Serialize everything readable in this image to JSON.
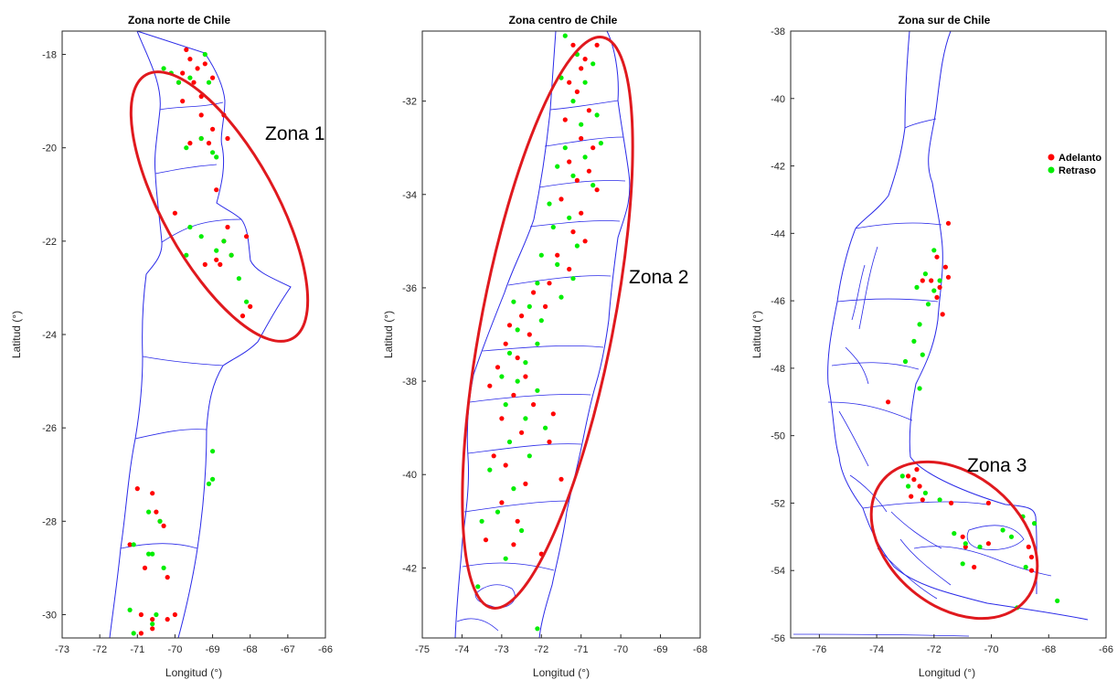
{
  "legend": {
    "items": [
      {
        "label": "Adelanto",
        "color": "#ff0000"
      },
      {
        "label": "Retraso",
        "color": "#00ee00"
      }
    ]
  },
  "chart_data": [
    {
      "type": "scatter",
      "title": "Zona norte de Chile",
      "xlabel": "Longitud (°)",
      "ylabel": "Latitud (°)",
      "xlim": [
        -73,
        -66
      ],
      "ylim": [
        -30.5,
        -17.5
      ],
      "xticks": [
        "-73",
        "-72",
        "-71",
        "-70",
        "-69",
        "-68",
        "-67",
        "-66"
      ],
      "yticks": [
        "-18",
        "-20",
        "-22",
        "-24",
        "-26",
        "-28",
        "-30"
      ],
      "annotation": "Zona 1",
      "series": [
        {
          "name": "Adelanto",
          "color": "#ff0000",
          "points": [
            [
              -69.7,
              -17.9
            ],
            [
              -69.6,
              -18.1
            ],
            [
              -69.4,
              -18.3
            ],
            [
              -69.2,
              -18.2
            ],
            [
              -69.8,
              -18.4
            ],
            [
              -69.5,
              -18.6
            ],
            [
              -69.9,
              -18.6
            ],
            [
              -69.3,
              -18.9
            ],
            [
              -69.0,
              -18.5
            ],
            [
              -69.8,
              -19.0
            ],
            [
              -69.3,
              -19.3
            ],
            [
              -68.7,
              -19.3
            ],
            [
              -68.6,
              -19.8
            ],
            [
              -69.0,
              -19.6
            ],
            [
              -69.1,
              -19.9
            ],
            [
              -69.3,
              -19.8
            ],
            [
              -69.6,
              -19.9
            ],
            [
              -70.0,
              -21.4
            ],
            [
              -68.9,
              -20.9
            ],
            [
              -68.1,
              -21.9
            ],
            [
              -68.6,
              -21.7
            ],
            [
              -68.7,
              -22.0
            ],
            [
              -68.5,
              -22.3
            ],
            [
              -68.9,
              -22.4
            ],
            [
              -69.2,
              -22.5
            ],
            [
              -68.8,
              -22.5
            ],
            [
              -68.0,
              -23.4
            ],
            [
              -68.2,
              -23.6
            ],
            [
              -71.0,
              -27.3
            ],
            [
              -70.6,
              -27.4
            ],
            [
              -70.5,
              -27.8
            ],
            [
              -70.4,
              -28.0
            ],
            [
              -70.3,
              -28.1
            ],
            [
              -71.2,
              -28.5
            ],
            [
              -70.8,
              -29.0
            ],
            [
              -70.2,
              -29.2
            ],
            [
              -70.9,
              -30.0
            ],
            [
              -70.6,
              -30.1
            ],
            [
              -70.0,
              -30.0
            ],
            [
              -70.6,
              -30.3
            ],
            [
              -70.9,
              -30.4
            ],
            [
              -70.2,
              -30.1
            ]
          ]
        },
        {
          "name": "Retraso",
          "color": "#00ee00",
          "points": [
            [
              -70.1,
              -18.4
            ],
            [
              -69.9,
              -18.6
            ],
            [
              -69.6,
              -18.5
            ],
            [
              -69.2,
              -18.0
            ],
            [
              -69.1,
              -18.6
            ],
            [
              -70.3,
              -18.3
            ],
            [
              -69.3,
              -19.8
            ],
            [
              -69.7,
              -20.0
            ],
            [
              -69.0,
              -20.1
            ],
            [
              -68.9,
              -20.2
            ],
            [
              -69.6,
              -21.7
            ],
            [
              -69.7,
              -22.3
            ],
            [
              -69.3,
              -21.9
            ],
            [
              -68.9,
              -22.2
            ],
            [
              -68.5,
              -22.3
            ],
            [
              -68.3,
              -22.8
            ],
            [
              -68.1,
              -23.3
            ],
            [
              -68.7,
              -22.0
            ],
            [
              -69.0,
              -26.5
            ],
            [
              -69.0,
              -27.1
            ],
            [
              -69.1,
              -27.2
            ],
            [
              -70.7,
              -27.8
            ],
            [
              -70.4,
              -28.0
            ],
            [
              -70.6,
              -28.7
            ],
            [
              -71.1,
              -28.5
            ],
            [
              -70.7,
              -28.7
            ],
            [
              -70.3,
              -29.0
            ],
            [
              -71.2,
              -29.9
            ],
            [
              -70.6,
              -30.2
            ],
            [
              -70.5,
              -30.0
            ],
            [
              -71.1,
              -30.4
            ]
          ]
        }
      ]
    },
    {
      "type": "scatter",
      "title": "Zona centro de Chile",
      "xlabel": "Longitud (°)",
      "ylabel": "Latitud (°)",
      "xlim": [
        -75,
        -68
      ],
      "ylim": [
        -43.5,
        -30.5
      ],
      "xticks": [
        "-75",
        "-74",
        "-73",
        "-72",
        "-71",
        "-70",
        "-69",
        "-68"
      ],
      "yticks": [
        "-32",
        "-34",
        "-36",
        "-38",
        "-40",
        "-42"
      ],
      "annotation": "Zona 2",
      "series": [
        {
          "name": "Adelanto",
          "color": "#ff0000",
          "points": [
            [
              -71.2,
              -30.8
            ],
            [
              -70.9,
              -31.1
            ],
            [
              -71.0,
              -31.3
            ],
            [
              -70.6,
              -30.8
            ],
            [
              -71.3,
              -31.6
            ],
            [
              -71.1,
              -31.8
            ],
            [
              -70.8,
              -32.2
            ],
            [
              -71.4,
              -32.4
            ],
            [
              -71.0,
              -32.8
            ],
            [
              -70.7,
              -33.0
            ],
            [
              -71.3,
              -33.3
            ],
            [
              -70.8,
              -33.5
            ],
            [
              -71.1,
              -33.7
            ],
            [
              -70.6,
              -33.9
            ],
            [
              -71.5,
              -34.1
            ],
            [
              -71.0,
              -34.4
            ],
            [
              -71.2,
              -34.8
            ],
            [
              -70.9,
              -35.0
            ],
            [
              -71.6,
              -35.3
            ],
            [
              -71.3,
              -35.6
            ],
            [
              -71.8,
              -35.9
            ],
            [
              -72.2,
              -36.1
            ],
            [
              -71.9,
              -36.4
            ],
            [
              -72.5,
              -36.6
            ],
            [
              -72.8,
              -36.8
            ],
            [
              -72.3,
              -37.0
            ],
            [
              -72.9,
              -37.2
            ],
            [
              -72.6,
              -37.5
            ],
            [
              -73.1,
              -37.7
            ],
            [
              -72.4,
              -37.9
            ],
            [
              -73.3,
              -38.1
            ],
            [
              -72.7,
              -38.3
            ],
            [
              -72.2,
              -38.5
            ],
            [
              -73.0,
              -38.8
            ],
            [
              -72.5,
              -39.1
            ],
            [
              -71.8,
              -39.3
            ],
            [
              -73.2,
              -39.6
            ],
            [
              -72.9,
              -39.8
            ],
            [
              -72.4,
              -40.2
            ],
            [
              -73.0,
              -40.6
            ],
            [
              -72.6,
              -41.0
            ],
            [
              -73.4,
              -41.4
            ],
            [
              -72.7,
              -41.5
            ],
            [
              -72.0,
              -41.7
            ],
            [
              -71.7,
              -38.7
            ],
            [
              -71.5,
              -40.1
            ]
          ]
        },
        {
          "name": "Retraso",
          "color": "#00ee00",
          "points": [
            [
              -71.4,
              -30.6
            ],
            [
              -71.1,
              -31.0
            ],
            [
              -70.7,
              -31.2
            ],
            [
              -71.5,
              -31.5
            ],
            [
              -70.9,
              -31.6
            ],
            [
              -71.2,
              -32.0
            ],
            [
              -70.6,
              -32.3
            ],
            [
              -71.0,
              -32.5
            ],
            [
              -70.5,
              -32.9
            ],
            [
              -71.4,
              -33.0
            ],
            [
              -70.9,
              -33.2
            ],
            [
              -71.6,
              -33.4
            ],
            [
              -71.2,
              -33.6
            ],
            [
              -70.7,
              -33.8
            ],
            [
              -71.8,
              -34.2
            ],
            [
              -71.3,
              -34.5
            ],
            [
              -71.7,
              -34.7
            ],
            [
              -71.1,
              -35.1
            ],
            [
              -72.0,
              -35.3
            ],
            [
              -71.6,
              -35.5
            ],
            [
              -71.2,
              -35.8
            ],
            [
              -72.1,
              -35.9
            ],
            [
              -71.5,
              -36.2
            ],
            [
              -72.3,
              -36.4
            ],
            [
              -72.7,
              -36.3
            ],
            [
              -72.0,
              -36.7
            ],
            [
              -72.6,
              -36.9
            ],
            [
              -72.1,
              -37.2
            ],
            [
              -72.8,
              -37.4
            ],
            [
              -72.4,
              -37.6
            ],
            [
              -73.0,
              -37.9
            ],
            [
              -72.6,
              -38.0
            ],
            [
              -72.1,
              -38.2
            ],
            [
              -72.9,
              -38.5
            ],
            [
              -72.4,
              -38.8
            ],
            [
              -71.9,
              -39.0
            ],
            [
              -72.8,
              -39.3
            ],
            [
              -72.3,
              -39.6
            ],
            [
              -73.3,
              -39.9
            ],
            [
              -72.7,
              -40.3
            ],
            [
              -73.1,
              -40.8
            ],
            [
              -72.5,
              -41.2
            ],
            [
              -73.5,
              -41.0
            ],
            [
              -72.9,
              -41.8
            ],
            [
              -73.6,
              -42.4
            ],
            [
              -72.1,
              -43.3
            ]
          ]
        }
      ]
    },
    {
      "type": "scatter",
      "title": "Zona sur de Chile",
      "xlabel": "Longitud (°)",
      "ylabel": "Latitud (°)",
      "xlim": [
        -77,
        -66
      ],
      "ylim": [
        -56,
        -38
      ],
      "xticks": [
        "-76",
        "-74",
        "-72",
        "-70",
        "-68",
        "-66"
      ],
      "yticks": [
        "-38",
        "-40",
        "-42",
        "-44",
        "-46",
        "-48",
        "-50",
        "-52",
        "-54",
        "-56"
      ],
      "annotation": "Zona 3",
      "series": [
        {
          "name": "Adelanto",
          "color": "#ff0000",
          "points": [
            [
              -71.5,
              -43.7
            ],
            [
              -71.9,
              -44.7
            ],
            [
              -71.6,
              -45.0
            ],
            [
              -72.1,
              -45.4
            ],
            [
              -71.8,
              -45.6
            ],
            [
              -72.4,
              -45.4
            ],
            [
              -71.5,
              -45.3
            ],
            [
              -71.9,
              -45.9
            ],
            [
              -71.7,
              -46.4
            ],
            [
              -73.6,
              -49.0
            ],
            [
              -72.9,
              -51.2
            ],
            [
              -72.7,
              -51.3
            ],
            [
              -72.6,
              -51.0
            ],
            [
              -72.5,
              -51.5
            ],
            [
              -72.8,
              -51.8
            ],
            [
              -72.4,
              -51.9
            ],
            [
              -71.4,
              -52.0
            ],
            [
              -70.1,
              -52.0
            ],
            [
              -71.0,
              -53.0
            ],
            [
              -70.9,
              -53.3
            ],
            [
              -70.6,
              -53.9
            ],
            [
              -68.7,
              -53.3
            ],
            [
              -68.6,
              -53.6
            ],
            [
              -68.6,
              -54.0
            ],
            [
              -70.1,
              -53.2
            ]
          ]
        },
        {
          "name": "Retraso",
          "color": "#00ee00",
          "points": [
            [
              -72.0,
              -44.5
            ],
            [
              -72.3,
              -45.2
            ],
            [
              -71.8,
              -45.4
            ],
            [
              -72.6,
              -45.6
            ],
            [
              -72.0,
              -45.7
            ],
            [
              -72.2,
              -46.1
            ],
            [
              -72.5,
              -46.7
            ],
            [
              -72.7,
              -47.2
            ],
            [
              -72.4,
              -47.6
            ],
            [
              -73.0,
              -47.8
            ],
            [
              -72.5,
              -48.6
            ],
            [
              -73.1,
              -51.2
            ],
            [
              -72.9,
              -51.5
            ],
            [
              -72.3,
              -51.7
            ],
            [
              -71.8,
              -51.9
            ],
            [
              -71.3,
              -52.9
            ],
            [
              -70.9,
              -53.2
            ],
            [
              -71.0,
              -53.8
            ],
            [
              -70.4,
              -53.3
            ],
            [
              -69.6,
              -52.8
            ],
            [
              -69.3,
              -53.0
            ],
            [
              -68.8,
              -53.9
            ],
            [
              -68.9,
              -52.4
            ],
            [
              -68.5,
              -52.6
            ],
            [
              -67.7,
              -54.9
            ],
            [
              -69.1,
              -55.1
            ]
          ]
        }
      ]
    }
  ]
}
